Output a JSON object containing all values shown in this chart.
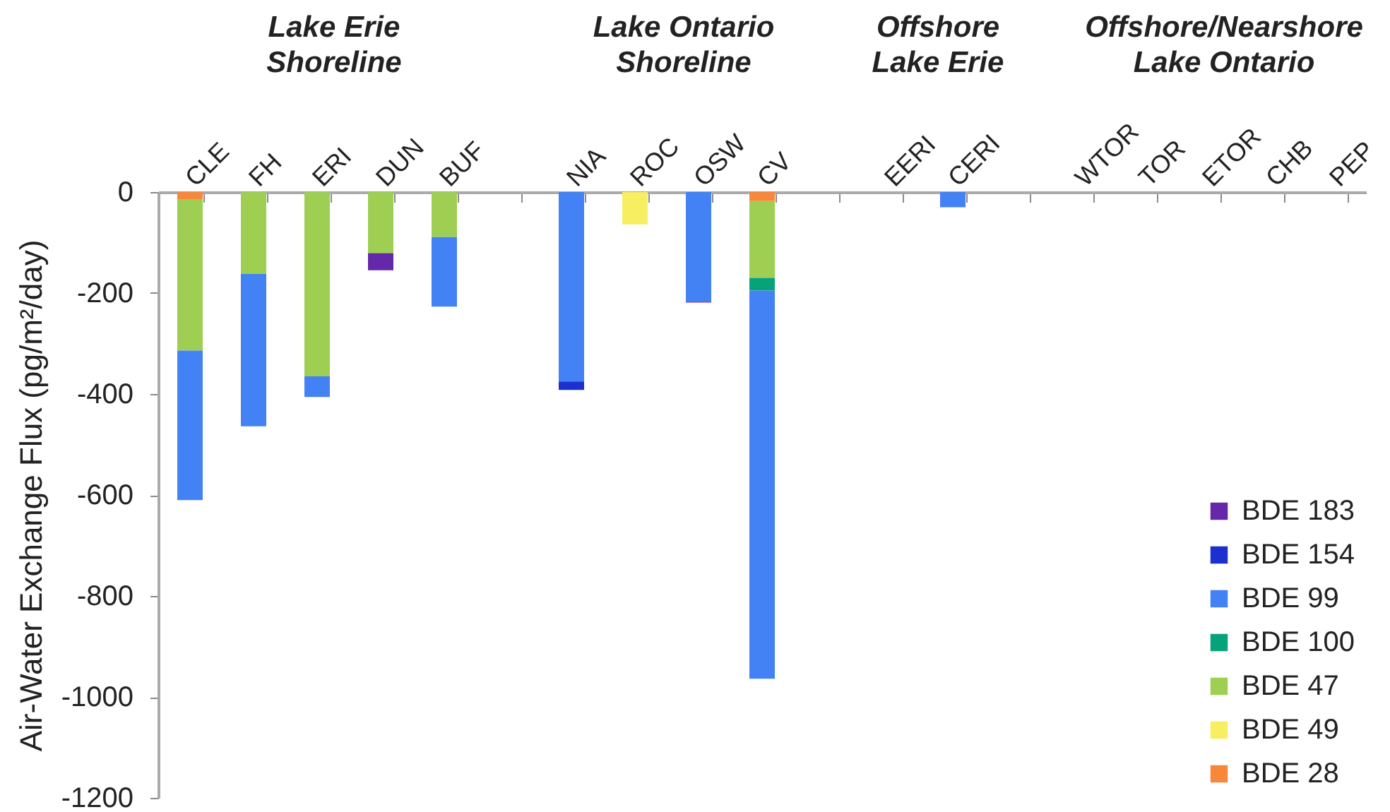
{
  "chart_data": {
    "type": "bar",
    "stacked": true,
    "ylabel": "Air-Water Exchange Flux (pg/m²/day)",
    "annotations": [
      "Lake Erie\nShoreline",
      "Lake Ontario\nShoreline",
      "Offshore\nLake Erie",
      "Offshore/Nearshore\nLake Ontario"
    ],
    "categories": [
      "CLE",
      "FH",
      "ERI",
      "DUN",
      "BUF",
      null,
      "NIA",
      "ROC",
      "OSW",
      "CV",
      null,
      "EERI",
      "CERI",
      null,
      "WTOR",
      "TOR",
      "ETOR",
      "CHB",
      "PEP"
    ],
    "series": [
      {
        "name": "BDE 28",
        "color": "#f7873b",
        "values": [
          -14,
          null,
          null,
          null,
          null,
          null,
          null,
          null,
          null,
          -18,
          null,
          null,
          null,
          null,
          null,
          null,
          null,
          null,
          null
        ]
      },
      {
        "name": "BDE 49",
        "color": "#f7ee62",
        "values": [
          null,
          null,
          null,
          null,
          null,
          null,
          null,
          -64,
          null,
          null,
          null,
          null,
          null,
          null,
          null,
          null,
          null,
          null,
          null
        ]
      },
      {
        "name": "BDE 47",
        "color": "#9fcf52",
        "values": [
          -300,
          -162,
          -365,
          -121,
          -89,
          null,
          null,
          null,
          null,
          -152,
          null,
          null,
          null,
          null,
          null,
          null,
          null,
          null,
          null
        ]
      },
      {
        "name": "BDE 100",
        "color": "#06a37a",
        "values": [
          null,
          null,
          null,
          null,
          null,
          null,
          null,
          null,
          null,
          -25,
          null,
          null,
          null,
          null,
          null,
          null,
          null,
          null,
          null
        ]
      },
      {
        "name": "BDE 99",
        "color": "#4282f4",
        "values": [
          -296,
          -302,
          -41,
          null,
          -138,
          null,
          -375,
          null,
          -217,
          -769,
          null,
          null,
          -30,
          null,
          null,
          null,
          null,
          null,
          null
        ]
      },
      {
        "name": "BDE 154",
        "color": "#1c30d0",
        "values": [
          null,
          null,
          null,
          null,
          null,
          null,
          -17,
          null,
          null,
          null,
          null,
          null,
          null,
          null,
          null,
          null,
          null,
          null,
          null
        ]
      },
      {
        "name": "BDE 183",
        "color": "#6428a8",
        "values": [
          null,
          null,
          null,
          -34,
          null,
          null,
          null,
          null,
          -2,
          null,
          null,
          null,
          null,
          null,
          null,
          null,
          null,
          null,
          null
        ]
      }
    ],
    "ylim": [
      -1200,
      0
    ],
    "yticks": [
      0,
      -200,
      -400,
      -600,
      -800,
      -1000,
      -1200
    ],
    "legend": "bottom right"
  }
}
